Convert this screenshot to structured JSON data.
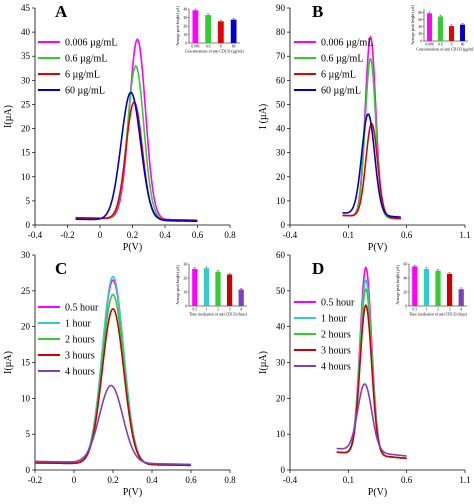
{
  "chart_data": [
    {
      "type": "line",
      "panel": "A",
      "xlabel": "P(V)",
      "ylabel": "I(µA)",
      "xlim": [
        -0.4,
        0.8
      ],
      "ylim": [
        0,
        45
      ],
      "x_ticks": [
        -0.4,
        -0.2,
        0,
        0.2,
        0.4,
        0.6,
        0.8
      ],
      "x_tick_labels": [
        "-0.4",
        "-0.2",
        "0",
        "0.2",
        "0.4",
        "0.6",
        "0.8"
      ],
      "y_ticks": [
        0,
        5,
        10,
        15,
        20,
        25,
        30,
        35,
        40,
        45
      ],
      "y_tick_labels": [
        "0",
        "5",
        "10",
        "15",
        "20",
        "25",
        "30",
        "35",
        "40",
        "45"
      ],
      "legend_position": "upper-left",
      "x_range": [
        -0.15,
        0.6
      ],
      "series": [
        {
          "name": "0.006 µg/mL",
          "color": "#ff00ff",
          "peak_x": 0.23,
          "peak": 38.5,
          "baseline": 1.5,
          "width": 0.05
        },
        {
          "name": "0.6 µg/mL",
          "color": "#33cc33",
          "peak_x": 0.22,
          "peak": 33,
          "baseline": 1.5,
          "width": 0.05
        },
        {
          "name": "6 µg/mL",
          "color": "#e60000",
          "peak_x": 0.21,
          "peak": 25.5,
          "baseline": 1.5,
          "width": 0.05
        },
        {
          "name": "60 µg/mL",
          "color": "#0000cc",
          "peak_x": 0.19,
          "peak": 27.5,
          "baseline": 1.2,
          "width": 0.06
        }
      ],
      "inset": {
        "type": "bar",
        "ylabel": "Average peak height (µA)",
        "xlabel": "Concentrations of anti CD133 (µg/mL)",
        "categories": [
          "0.006",
          "0.6",
          "6",
          "60"
        ],
        "values": [
          38.5,
          33,
          25.5,
          27.5
        ],
        "colors": [
          "#ff00ff",
          "#33cc33",
          "#e60000",
          "#0000cc"
        ],
        "ylim": [
          0,
          40
        ],
        "y_ticks": [
          0,
          10,
          20,
          30,
          40
        ]
      }
    },
    {
      "type": "line",
      "panel": "B",
      "xlabel": "P(V)",
      "ylabel": "I (µA)",
      "xlim": [
        -0.4,
        1.1
      ],
      "ylim": [
        0,
        90
      ],
      "x_ticks": [
        -0.4,
        0.1,
        0.6,
        1.1
      ],
      "x_tick_labels": [
        "-0.4",
        "0.1",
        "0.6",
        "1.1"
      ],
      "y_ticks": [
        0,
        10,
        20,
        30,
        40,
        50,
        60,
        70,
        80,
        90
      ],
      "y_tick_labels": [
        "0",
        "10",
        "20",
        "30",
        "40",
        "50",
        "60",
        "70",
        "80",
        "90"
      ],
      "legend_position": "upper-left",
      "x_range": [
        0.05,
        0.55
      ],
      "series": [
        {
          "name": "0.006 µg/mL",
          "color": "#ff00ff",
          "peak_x": 0.29,
          "peak": 78,
          "baseline": 4,
          "width": 0.045
        },
        {
          "name": "0.6 µg/mL",
          "color": "#33cc33",
          "peak_x": 0.29,
          "peak": 69,
          "baseline": 4,
          "width": 0.045
        },
        {
          "name": "6 µg/mL",
          "color": "#e60000",
          "peak_x": 0.3,
          "peak": 42,
          "baseline": 4,
          "width": 0.05
        },
        {
          "name": "60 µg/mL",
          "color": "#0000cc",
          "peak_x": 0.27,
          "peak": 46,
          "baseline": 5,
          "width": 0.055
        }
      ],
      "inset": {
        "type": "bar",
        "ylabel": "Average peak height (µA)",
        "xlabel": "Concentrations of anti CD133 (µg/mL)",
        "categories": [
          "0.006",
          "0.6",
          "6",
          "60"
        ],
        "values": [
          78,
          69,
          42,
          46
        ],
        "colors": [
          "#ff00ff",
          "#33cc33",
          "#e60000",
          "#0000cc"
        ],
        "ylim": [
          0,
          90
        ],
        "y_ticks": [
          0,
          20,
          40,
          60,
          80
        ]
      }
    },
    {
      "type": "line",
      "panel": "C",
      "xlabel": "P(V)",
      "ylabel": "I(µA)",
      "xlim": [
        -0.2,
        0.8
      ],
      "ylim": [
        0,
        30
      ],
      "x_ticks": [
        -0.2,
        0,
        0.2,
        0.4,
        0.6,
        0.8
      ],
      "x_tick_labels": [
        "-0.2",
        "0",
        "0.2",
        "0.4",
        "0.6",
        "0.8"
      ],
      "y_ticks": [
        0,
        5,
        10,
        15,
        20,
        25,
        30
      ],
      "y_tick_labels": [
        "0",
        "5",
        "10",
        "15",
        "20",
        "25",
        "30"
      ],
      "legend_position": "upper-left",
      "x_range": [
        -0.2,
        0.6
      ],
      "series": [
        {
          "name": "0.5 hour",
          "color": "#ff00ff",
          "peak_x": 0.2,
          "peak": 26.5,
          "baseline": 1.0,
          "width": 0.055
        },
        {
          "name": "1 hour",
          "color": "#33cccc",
          "peak_x": 0.2,
          "peak": 27,
          "baseline": 1.0,
          "width": 0.055
        },
        {
          "name": "2 hours",
          "color": "#33cc33",
          "peak_x": 0.2,
          "peak": 24.5,
          "baseline": 1.0,
          "width": 0.055
        },
        {
          "name": "3 hours",
          "color": "#cc0000",
          "peak_x": 0.2,
          "peak": 22.5,
          "baseline": 1.0,
          "width": 0.055
        },
        {
          "name": "4 hours",
          "color": "#7f3fbf",
          "peak_x": 0.19,
          "peak": 11.8,
          "baseline": 1.2,
          "width": 0.06
        }
      ],
      "inset": {
        "type": "bar",
        "ylabel": "Average peak height (µA)",
        "xlabel": "Time incubation of anti CD133 (hour)",
        "categories": [
          "0.5",
          "1",
          "2",
          "3",
          "4"
        ],
        "values": [
          26.5,
          27,
          24.5,
          22.5,
          11.8
        ],
        "colors": [
          "#ff00ff",
          "#33cccc",
          "#33cc33",
          "#cc0000",
          "#7f3fbf"
        ],
        "ylim": [
          0,
          30
        ],
        "y_ticks": [
          0,
          10,
          20,
          30
        ]
      }
    },
    {
      "type": "line",
      "panel": "D",
      "xlabel": "P(V)",
      "ylabel": "I(µA)",
      "xlim": [
        -0.4,
        1.1
      ],
      "ylim": [
        0,
        60
      ],
      "x_ticks": [
        -0.4,
        0.1,
        0.6,
        1.1
      ],
      "x_tick_labels": [
        "-0.4",
        "0.1",
        "0.6",
        "1.1"
      ],
      "y_ticks": [
        0,
        10,
        20,
        30,
        40,
        50,
        60
      ],
      "y_tick_labels": [
        "0",
        "10",
        "20",
        "30",
        "40",
        "50",
        "60"
      ],
      "legend_position": "upper-left",
      "x_range": [
        0.0,
        0.6
      ],
      "series": [
        {
          "name": "0.5 hour",
          "color": "#ff00ff",
          "peak_x": 0.25,
          "peak": 56.5,
          "baseline": 5,
          "width": 0.05
        },
        {
          "name": "1 hour",
          "color": "#33cccc",
          "peak_x": 0.25,
          "peak": 53,
          "baseline": 5,
          "width": 0.05
        },
        {
          "name": "2 hours",
          "color": "#33cc33",
          "peak_x": 0.25,
          "peak": 50.5,
          "baseline": 5,
          "width": 0.05
        },
        {
          "name": "3 hours",
          "color": "#cc0000",
          "peak_x": 0.25,
          "peak": 46,
          "baseline": 5,
          "width": 0.05
        },
        {
          "name": "4 hours",
          "color": "#7f3fbf",
          "peak_x": 0.24,
          "peak": 24,
          "baseline": 6,
          "width": 0.06
        }
      ],
      "inset": {
        "type": "bar",
        "ylabel": "Average peak height (µA)",
        "xlabel": "Time incubation of anti CD133 (hour)",
        "categories": [
          "0.5",
          "1",
          "2",
          "3",
          "4"
        ],
        "values": [
          56.5,
          53,
          50.5,
          46,
          24
        ],
        "colors": [
          "#ff00ff",
          "#33cccc",
          "#33cc33",
          "#cc0000",
          "#7f3fbf"
        ],
        "ylim": [
          0,
          60
        ],
        "y_ticks": [
          0,
          20,
          40,
          60
        ]
      }
    }
  ]
}
